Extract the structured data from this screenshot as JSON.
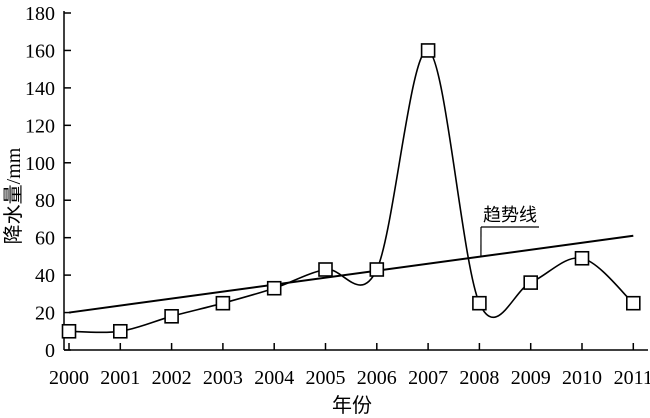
{
  "chart_data": {
    "type": "line",
    "title": "",
    "xlabel": "年份",
    "ylabel": "降水量/mm",
    "ylim": [
      0,
      180
    ],
    "yticks": [
      0,
      20,
      40,
      60,
      80,
      100,
      120,
      140,
      160,
      180
    ],
    "categories": [
      "2000",
      "2001",
      "2002",
      "2003",
      "2004",
      "2005",
      "2006",
      "2007",
      "2008",
      "2009",
      "2010",
      "2011"
    ],
    "series": [
      {
        "values": [
          10,
          10,
          18,
          25,
          33,
          43,
          43,
          160,
          25,
          36,
          49,
          25
        ],
        "marker": "open-square",
        "smooth": true,
        "color": "#000000"
      }
    ],
    "trendline": {
      "label": "趋势线",
      "start": 20,
      "end": 61,
      "color": "#000000"
    },
    "grid": false,
    "legend": "none"
  }
}
